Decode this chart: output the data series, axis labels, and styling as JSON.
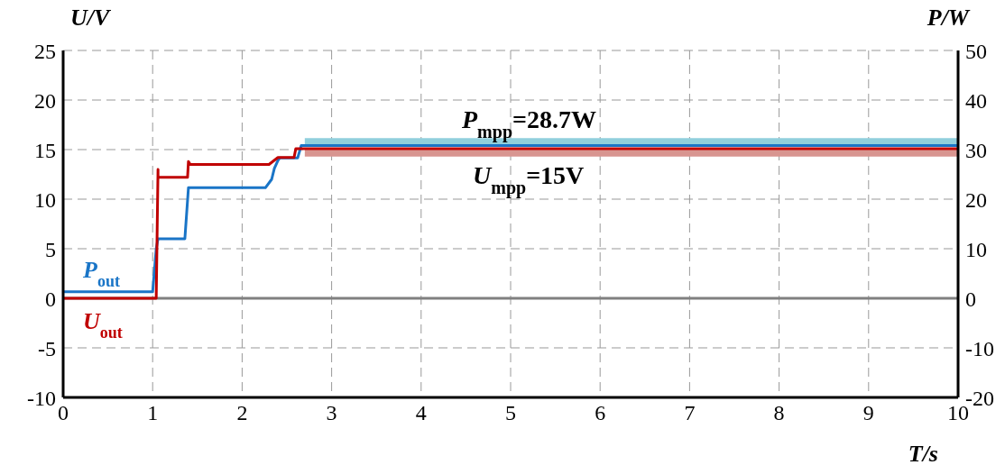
{
  "chart_data": {
    "type": "line",
    "xlabel": "T/s",
    "ylabel": "U/V",
    "y2label": "P/W",
    "xlim": [
      0,
      10
    ],
    "xticks": [
      0,
      1,
      2,
      3,
      4,
      5,
      6,
      7,
      8,
      9,
      10
    ],
    "ylim": [
      -10,
      25
    ],
    "yticks": [
      -10,
      -5,
      0,
      5,
      10,
      15,
      20,
      25
    ],
    "y2lim": [
      -20,
      50
    ],
    "y2ticks": [
      -20,
      -10,
      0,
      10,
      20,
      30,
      40,
      50
    ],
    "grid": true,
    "legend": false,
    "marker": "none",
    "line_style": "solid",
    "ref_lines": [
      {
        "axis": "y",
        "value": 0,
        "color": "#808080"
      }
    ],
    "series": [
      {
        "axis": "y2",
        "color": "#90cfdc",
        "x": [
          2.7,
          10
        ],
        "values": [
          31.5,
          31.5
        ]
      },
      {
        "axis": "y",
        "color": "#d89590",
        "x": [
          2.7,
          10
        ],
        "values": [
          14.7,
          14.7
        ]
      },
      {
        "name": "P$_{out}$",
        "axis": "y2",
        "color": "#1a75c7",
        "x": [
          0,
          1.0,
          1.04,
          1.06,
          1.36,
          1.4,
          2.26,
          2.33,
          2.36,
          2.4,
          2.42,
          2.62,
          2.66,
          10
        ],
        "values": [
          1.3,
          1.3,
          10,
          12,
          12,
          22.3,
          22.3,
          24,
          26.2,
          27.8,
          28.3,
          28.3,
          30.8,
          30.8
        ]
      },
      {
        "name": "U$_{out}$",
        "axis": "y",
        "color": "#c00000",
        "x": [
          0,
          1.04,
          1.06,
          1.06,
          1.08,
          1.39,
          1.4,
          1.42,
          2.3,
          2.4,
          2.58,
          2.6,
          10
        ],
        "values": [
          0,
          0,
          13,
          12.2,
          12.2,
          12.2,
          13.8,
          13.5,
          13.5,
          14.2,
          14.2,
          15.1,
          15.1
        ]
      }
    ],
    "annotations": [
      "P$_{mpp}$=28.7W",
      "U$_{mpp}$=15V"
    ]
  }
}
